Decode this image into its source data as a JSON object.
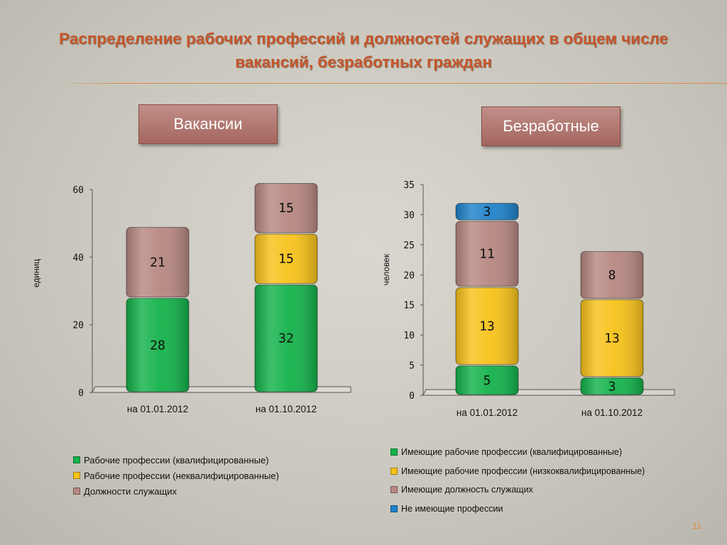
{
  "slide": {
    "title": "Распределение рабочих профессий и должностей служащих в общем числе вакансий, безработных граждан",
    "number": "11"
  },
  "badges": {
    "vacancies": "Вакансии",
    "unemployed": "Безработные"
  },
  "colors": {
    "green": "#13b24a",
    "yellow": "#f7c21a",
    "mauve": "#b78781",
    "blue": "#1e82c9",
    "title": "#c7552a"
  },
  "chart_data": [
    {
      "type": "bar",
      "stacked": true,
      "title": "Вакансии",
      "ylabel": "единиц",
      "xlabel": "",
      "ylim": [
        0,
        60
      ],
      "yticks": [
        0,
        20,
        40,
        60
      ],
      "categories": [
        "на 01.01.2012",
        "на 01.10.2012"
      ],
      "series": [
        {
          "name": "Рабочие профессии (квалифицированные)",
          "color": "#13b24a",
          "values": [
            28,
            32
          ]
        },
        {
          "name": "Рабочие профессии (неквалифицированные)",
          "color": "#f7c21a",
          "values": [
            null,
            15
          ]
        },
        {
          "name": "Должности служащих",
          "color": "#b78781",
          "values": [
            21,
            15
          ]
        }
      ],
      "legend_position": "bottom"
    },
    {
      "type": "bar",
      "stacked": true,
      "title": "Безработные",
      "ylabel": "человек",
      "xlabel": "",
      "ylim": [
        0,
        35
      ],
      "yticks": [
        0,
        5,
        10,
        15,
        20,
        25,
        30,
        35
      ],
      "categories": [
        "на 01.01.2012",
        "на 01.10.2012"
      ],
      "series": [
        {
          "name": "Имеющие рабочие профессии (квалифицированные)",
          "color": "#13b24a",
          "values": [
            5,
            3
          ]
        },
        {
          "name": "Имеющие рабочие профессии (низкоквалифицированные)",
          "color": "#f7c21a",
          "values": [
            13,
            13
          ]
        },
        {
          "name": "Имеющие должность служащих",
          "color": "#b78781",
          "values": [
            11,
            8
          ]
        },
        {
          "name": "Не имеющие профессии",
          "color": "#1e82c9",
          "values": [
            3,
            null
          ]
        }
      ],
      "legend_position": "bottom"
    }
  ]
}
